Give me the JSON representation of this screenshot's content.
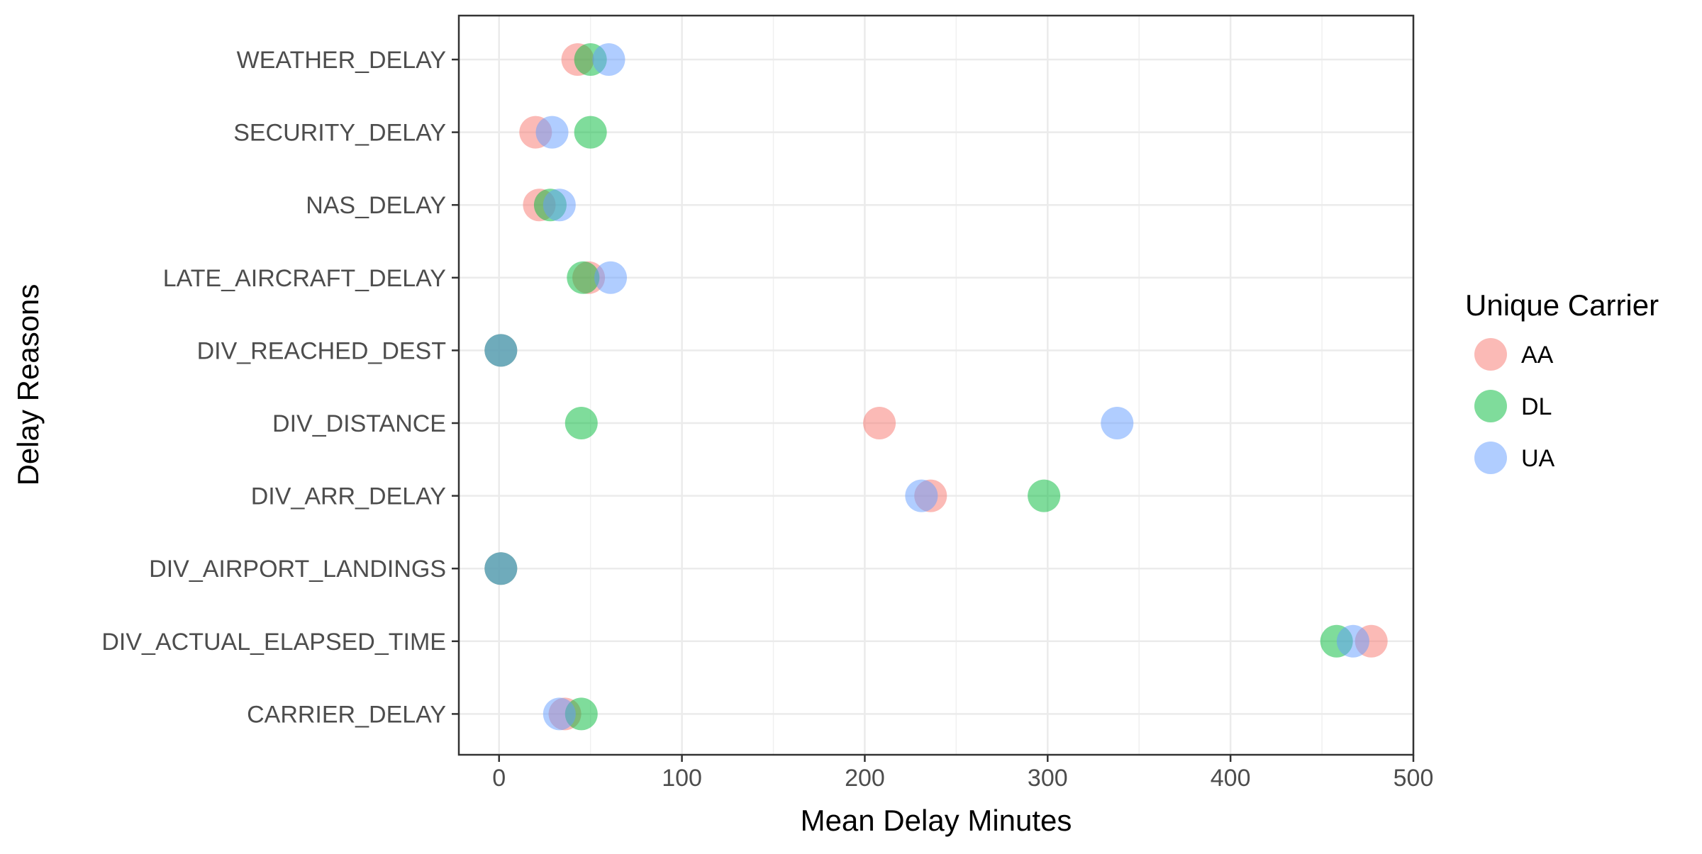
{
  "chart_data": {
    "type": "scatter",
    "title": "",
    "xlabel": "Mean Delay Minutes",
    "ylabel": "Delay Reasons",
    "xlim": [
      -22,
      500
    ],
    "x_ticks": [
      0,
      100,
      200,
      300,
      400,
      500
    ],
    "x_tick_labels": [
      "0",
      "100",
      "200",
      "300",
      "400",
      "500"
    ],
    "categories": [
      "WEATHER_DELAY",
      "SECURITY_DELAY",
      "NAS_DELAY",
      "LATE_AIRCRAFT_DELAY",
      "DIV_REACHED_DEST",
      "DIV_DISTANCE",
      "DIV_ARR_DELAY",
      "DIV_AIRPORT_LANDINGS",
      "DIV_ACTUAL_ELAPSED_TIME",
      "CARRIER_DELAY"
    ],
    "grid": true,
    "legend": {
      "title": "Unique Carrier",
      "position": "right"
    },
    "point_opacity": 0.5,
    "series": [
      {
        "name": "AA",
        "color": "#F8766D",
        "points": [
          {
            "category": "WEATHER_DELAY",
            "x": 43
          },
          {
            "category": "SECURITY_DELAY",
            "x": 20
          },
          {
            "category": "NAS_DELAY",
            "x": 22
          },
          {
            "category": "LATE_AIRCRAFT_DELAY",
            "x": 49
          },
          {
            "category": "DIV_REACHED_DEST",
            "x": 1
          },
          {
            "category": "DIV_DISTANCE",
            "x": 208
          },
          {
            "category": "DIV_ARR_DELAY",
            "x": 236
          },
          {
            "category": "DIV_AIRPORT_LANDINGS",
            "x": 1
          },
          {
            "category": "DIV_ACTUAL_ELAPSED_TIME",
            "x": 477
          },
          {
            "category": "CARRIER_DELAY",
            "x": 36
          }
        ]
      },
      {
        "name": "DL",
        "color": "#00BA38",
        "points": [
          {
            "category": "WEATHER_DELAY",
            "x": 50
          },
          {
            "category": "SECURITY_DELAY",
            "x": 50
          },
          {
            "category": "NAS_DELAY",
            "x": 28
          },
          {
            "category": "LATE_AIRCRAFT_DELAY",
            "x": 46
          },
          {
            "category": "DIV_REACHED_DEST",
            "x": 1
          },
          {
            "category": "DIV_DISTANCE",
            "x": 45
          },
          {
            "category": "DIV_ARR_DELAY",
            "x": 298
          },
          {
            "category": "DIV_AIRPORT_LANDINGS",
            "x": 1
          },
          {
            "category": "DIV_ACTUAL_ELAPSED_TIME",
            "x": 458
          },
          {
            "category": "CARRIER_DELAY",
            "x": 45
          }
        ]
      },
      {
        "name": "UA",
        "color": "#619CFF",
        "points": [
          {
            "category": "WEATHER_DELAY",
            "x": 60
          },
          {
            "category": "SECURITY_DELAY",
            "x": 29
          },
          {
            "category": "NAS_DELAY",
            "x": 33
          },
          {
            "category": "LATE_AIRCRAFT_DELAY",
            "x": 61
          },
          {
            "category": "DIV_REACHED_DEST",
            "x": 1
          },
          {
            "category": "DIV_DISTANCE",
            "x": 338
          },
          {
            "category": "DIV_ARR_DELAY",
            "x": 231
          },
          {
            "category": "DIV_AIRPORT_LANDINGS",
            "x": 1
          },
          {
            "category": "DIV_ACTUAL_ELAPSED_TIME",
            "x": 467
          },
          {
            "category": "CARRIER_DELAY",
            "x": 33
          }
        ]
      }
    ]
  }
}
